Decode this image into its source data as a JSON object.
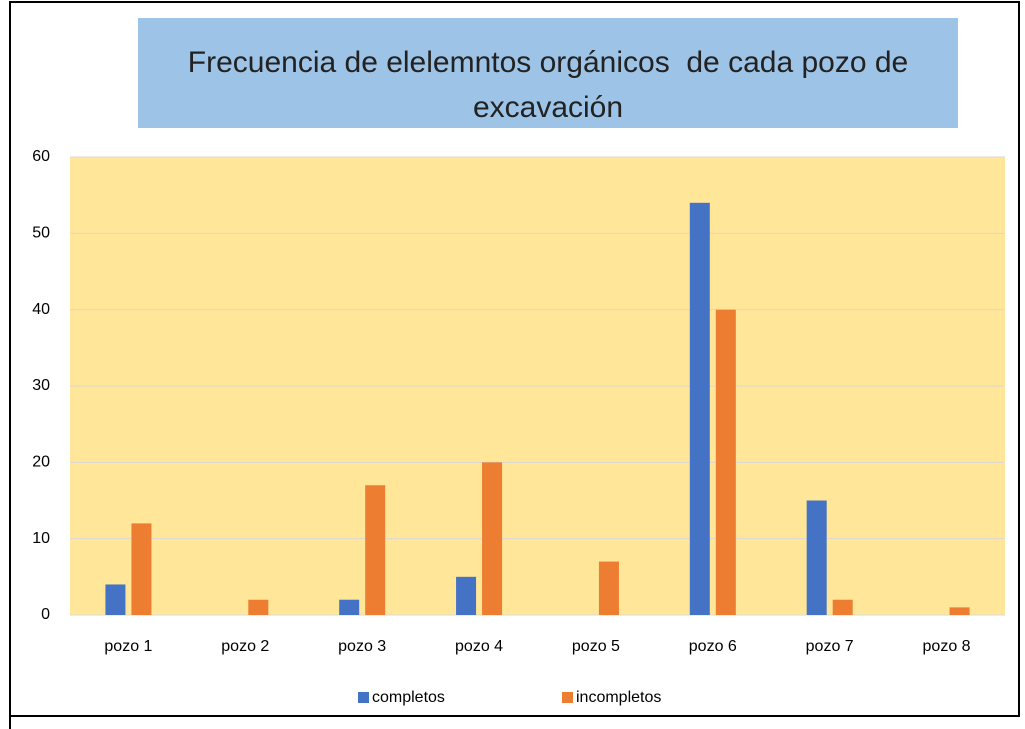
{
  "chart_data": {
    "type": "bar",
    "title": "Frecuencia de elelemntos orgánicos  de cada pozo de excavación",
    "categories": [
      "pozo 1",
      "pozo 2",
      "pozo 3",
      "pozo 4",
      "pozo 5",
      "pozo 6",
      "pozo 7",
      "pozo 8"
    ],
    "series": [
      {
        "name": "completos",
        "color": "#4472C4",
        "values": [
          4,
          0,
          2,
          5,
          0,
          54,
          15,
          0
        ]
      },
      {
        "name": "incompletos",
        "color": "#ED7D31",
        "values": [
          12,
          2,
          17,
          20,
          7,
          40,
          2,
          1
        ]
      }
    ],
    "ylim": [
      0,
      60
    ],
    "yticks": [
      0,
      10,
      20,
      30,
      40,
      50,
      60
    ],
    "grid": true,
    "legend": "bottom"
  }
}
